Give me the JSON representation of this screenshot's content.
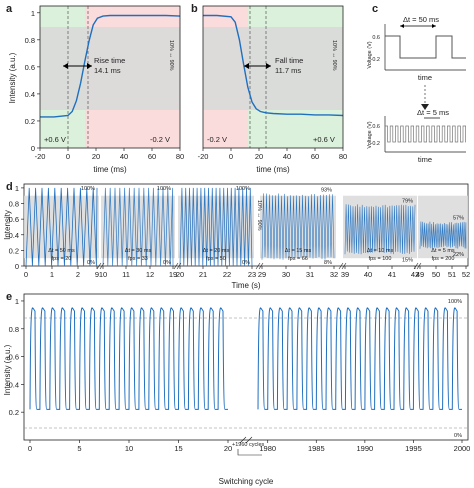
{
  "colors": {
    "trace": "#1f6fbf",
    "green": "#dcf1dc",
    "red": "#fadcdc",
    "gray": "#d9d9d9",
    "axis": "#222222"
  },
  "panel_a": {
    "label": "a",
    "ylabel": "Intensity (a.u.)",
    "xlabel": "time (ms)",
    "annotation_line1": "Rise time",
    "annotation_line2": "14.1 ms",
    "left_voltage": "+0.6 V",
    "right_voltage": "-0.2 V",
    "side_label": "10% ↔ 90%"
  },
  "panel_b": {
    "label": "b",
    "xlabel": "time (ms)",
    "annotation_line1": "Fall time",
    "annotation_line2": "11.7 ms",
    "left_voltage": "-0.2 V",
    "right_voltage": "+0.6 V",
    "side_label": "10% ↔ 90%"
  },
  "panel_c": {
    "label": "c",
    "top_dt": "Δt = 50 ms",
    "bottom_dt": "Δt = 5 ms",
    "ylabel": "Voltage (V)",
    "xlabel": "time",
    "yticks": [
      "0.6",
      "-0.2"
    ]
  },
  "panel_d": {
    "label": "d",
    "ylabel": "Intensity",
    "xlabel": "Time (s)",
    "segments": [
      {
        "dt": "Δt = 50 ms",
        "fps": "fps = 20",
        "hi": "100%",
        "lo": "0%"
      },
      {
        "dt": "Δt = 30 ms",
        "fps": "fps = 33",
        "hi": "100%",
        "lo": "0%"
      },
      {
        "dt": "Δt = 20 ms",
        "fps": "fps = 50",
        "hi": "100%",
        "lo": "0%"
      },
      {
        "dt": "Δt = 15 ms",
        "fps": "fps = 66",
        "hi": "93%",
        "lo": "8%"
      },
      {
        "dt": "Δt = 10 ms",
        "fps": "fps = 100",
        "hi": "79%",
        "lo": "15%"
      },
      {
        "dt": "Δt = 5 ms",
        "fps": "fps = 200",
        "hi": "57%",
        "lo": "22%"
      }
    ],
    "side_label": "10% ↔ 90%"
  },
  "panel_e": {
    "label": "e",
    "ylabel": "Intensity (a.u.)",
    "xlabel": "Switching cycle",
    "hi": "100%",
    "lo": "0%",
    "break_note": "+1960 cycles"
  },
  "chart_data": [
    {
      "type": "line",
      "panel": "a",
      "xlim": [
        -20,
        80
      ],
      "ylim": [
        0,
        1.05
      ],
      "xticks": [
        "-20",
        "0",
        "20",
        "40",
        "60",
        "80"
      ],
      "yticks": [
        "0",
        "0.2",
        "0.4",
        "0.6",
        "0.8",
        "1"
      ],
      "x": [
        -20,
        -10,
        0,
        3,
        6,
        9,
        12,
        15,
        18,
        21,
        25,
        30,
        40,
        50,
        60,
        70,
        80
      ],
      "y": [
        0.23,
        0.23,
        0.24,
        0.27,
        0.35,
        0.48,
        0.64,
        0.79,
        0.91,
        0.96,
        0.975,
        0.98,
        0.98,
        0.98,
        0.98,
        0.98,
        0.975
      ]
    },
    {
      "type": "line",
      "panel": "b",
      "xlim": [
        -20,
        80
      ],
      "ylim": [
        0,
        1.05
      ],
      "xticks": [
        "-20",
        "0",
        "20",
        "40",
        "60",
        "80"
      ],
      "x": [
        -20,
        -10,
        0,
        3,
        6,
        9,
        12,
        15,
        18,
        21,
        25,
        30,
        40,
        50,
        60,
        70,
        80
      ],
      "y": [
        0.98,
        0.98,
        0.97,
        0.93,
        0.8,
        0.62,
        0.45,
        0.34,
        0.29,
        0.27,
        0.26,
        0.255,
        0.25,
        0.25,
        0.245,
        0.245,
        0.24
      ]
    },
    {
      "type": "line",
      "panel": "d",
      "xlim": [
        0,
        52
      ],
      "ylim": [
        0,
        1.05
      ],
      "xticks": [
        "0",
        "1",
        "2",
        "9",
        "10",
        "11",
        "12",
        "19",
        "20",
        "21",
        "22",
        "23",
        "29",
        "30",
        "31",
        "32",
        "39",
        "40",
        "41",
        "42",
        "49",
        "50",
        "51",
        "52"
      ],
      "yticks": [
        "0",
        "0.2",
        "0.4",
        "0.6",
        "0.8",
        "1"
      ],
      "segment_ranges": [
        {
          "t": [
            0,
            9
          ],
          "hi": 1.0,
          "lo": 0.0
        },
        {
          "t": [
            9.4,
            18.6
          ],
          "hi": 1.0,
          "lo": 0.0
        },
        {
          "t": [
            19,
            28.6
          ],
          "hi": 1.0,
          "lo": 0.0
        },
        {
          "t": [
            29,
            38.6
          ],
          "hi": 0.93,
          "lo": 0.08
        },
        {
          "t": [
            39,
            48.6
          ],
          "hi": 0.79,
          "lo": 0.15
        },
        {
          "t": [
            49,
            52
          ],
          "hi": 0.57,
          "lo": 0.22
        }
      ]
    },
    {
      "type": "line",
      "panel": "e",
      "ylim": [
        0,
        1.05
      ],
      "xticks": [
        "0",
        "5",
        "10",
        "15",
        "20",
        "1980",
        "1985",
        "1990",
        "1995",
        "2000"
      ],
      "yticks": [
        "0.2",
        "0.4",
        "0.6",
        "0.8",
        "1"
      ],
      "cycle_ranges": [
        [
          0,
          20
        ],
        [
          1979,
          2000
        ]
      ],
      "hi": 0.97,
      "lo": 0.22
    }
  ]
}
